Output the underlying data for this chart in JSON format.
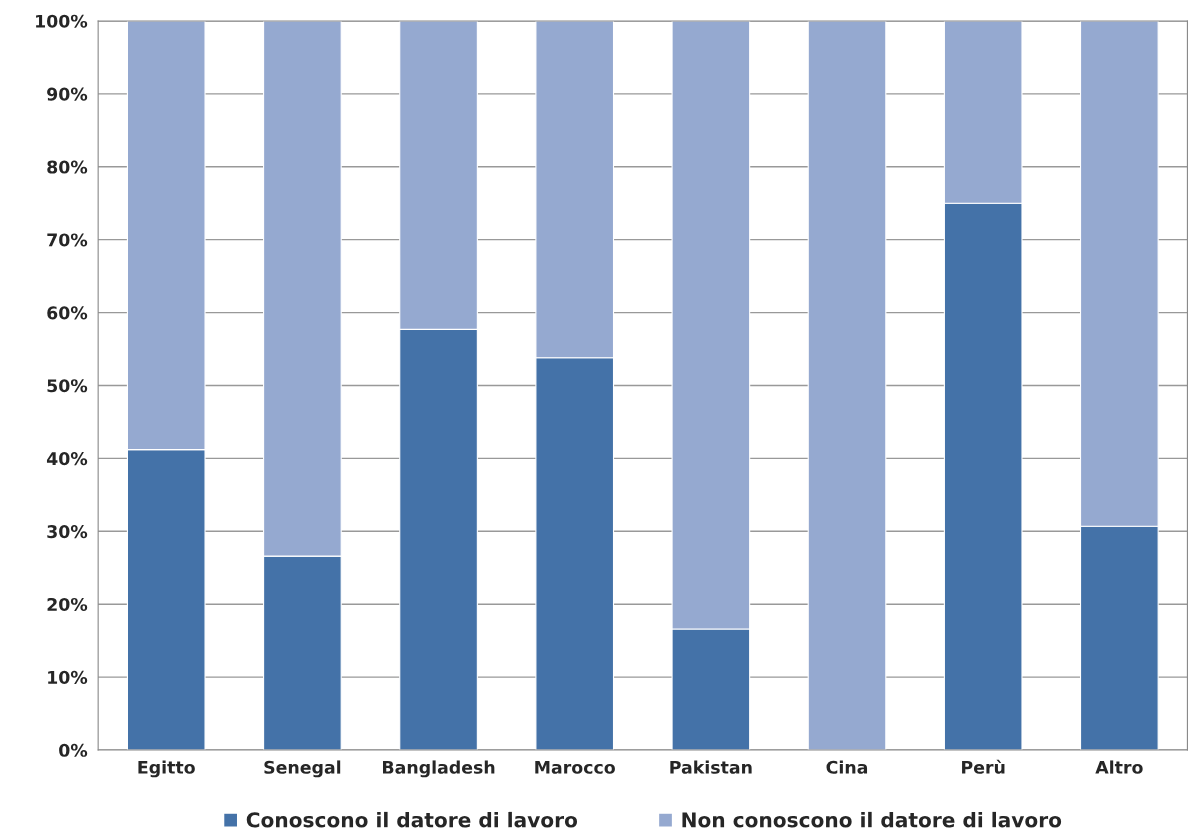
{
  "chart_data": {
    "type": "bar",
    "stacked": true,
    "categories": [
      "Egitto",
      "Senegal",
      "Bangladesh",
      "Marocco",
      "Pakistan",
      "Cina",
      "Perù",
      "Altro"
    ],
    "series": [
      {
        "name": "Conoscono il datore di lavoro",
        "color": "#4472a8",
        "values": [
          41.2,
          26.6,
          57.7,
          53.8,
          16.6,
          0,
          75,
          30.7
        ]
      },
      {
        "name": "Non conoscono il datore di lavoro",
        "color": "#95a9d0",
        "values": [
          58.8,
          73.4,
          42.3,
          46.2,
          83.4,
          100,
          25,
          69.3
        ]
      }
    ],
    "ylim": [
      0,
      100
    ],
    "yticks": [
      {
        "value": 0,
        "label": "0%"
      },
      {
        "value": 10,
        "label": "10%"
      },
      {
        "value": 20,
        "label": "20%"
      },
      {
        "value": 30,
        "label": "30%"
      },
      {
        "value": 40,
        "label": "40%"
      },
      {
        "value": 50,
        "label": "50%"
      },
      {
        "value": 60,
        "label": "60%"
      },
      {
        "value": 70,
        "label": "70%"
      },
      {
        "value": 80,
        "label": "80%"
      },
      {
        "value": 90,
        "label": "90%"
      },
      {
        "value": 100,
        "label": "100%"
      }
    ],
    "grid": "y",
    "legend": "bottom"
  }
}
